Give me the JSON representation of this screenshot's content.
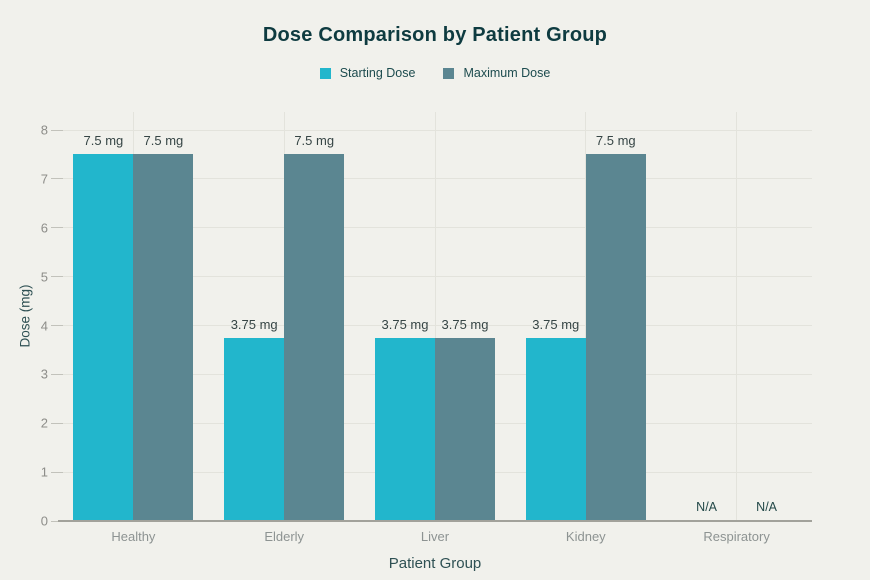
{
  "chart_data": {
    "type": "bar",
    "title": "Dose Comparison by Patient Group",
    "xlabel": "Patient Group",
    "ylabel": "Dose (mg)",
    "categories": [
      "Healthy",
      "Elderly",
      "Liver",
      "Kidney",
      "Respiratory"
    ],
    "series": [
      {
        "name": "Starting Dose",
        "color": "#22b6cc",
        "values": [
          7.5,
          3.75,
          3.75,
          3.75,
          null
        ],
        "labels": [
          "7.5 mg",
          "3.75 mg",
          "3.75 mg",
          "3.75 mg",
          "N/A"
        ]
      },
      {
        "name": "Maximum Dose",
        "color": "#5b8691",
        "values": [
          7.5,
          7.5,
          3.75,
          7.5,
          null
        ],
        "labels": [
          "7.5 mg",
          "7.5 mg",
          "3.75 mg",
          "7.5 mg",
          "N/A"
        ]
      }
    ],
    "ylim": [
      0,
      8
    ],
    "yticks": [
      0,
      1,
      2,
      3,
      4,
      5,
      6,
      7,
      8
    ],
    "grid": true,
    "legend_position": "top",
    "missing_label": "N/A"
  },
  "colors": {
    "background": "#f1f1ec",
    "title": "#0e3b40",
    "legend_text": "#1c4b4e",
    "grid": "#e3e3dc",
    "axis_line": "#a2a29b",
    "tick_mark": "#c2c2bb",
    "tick_label": "#8d8d89",
    "category_label": "#8d9392",
    "value_label": "#364545",
    "na_label": "#234848",
    "axis_title": "#2e5053"
  }
}
